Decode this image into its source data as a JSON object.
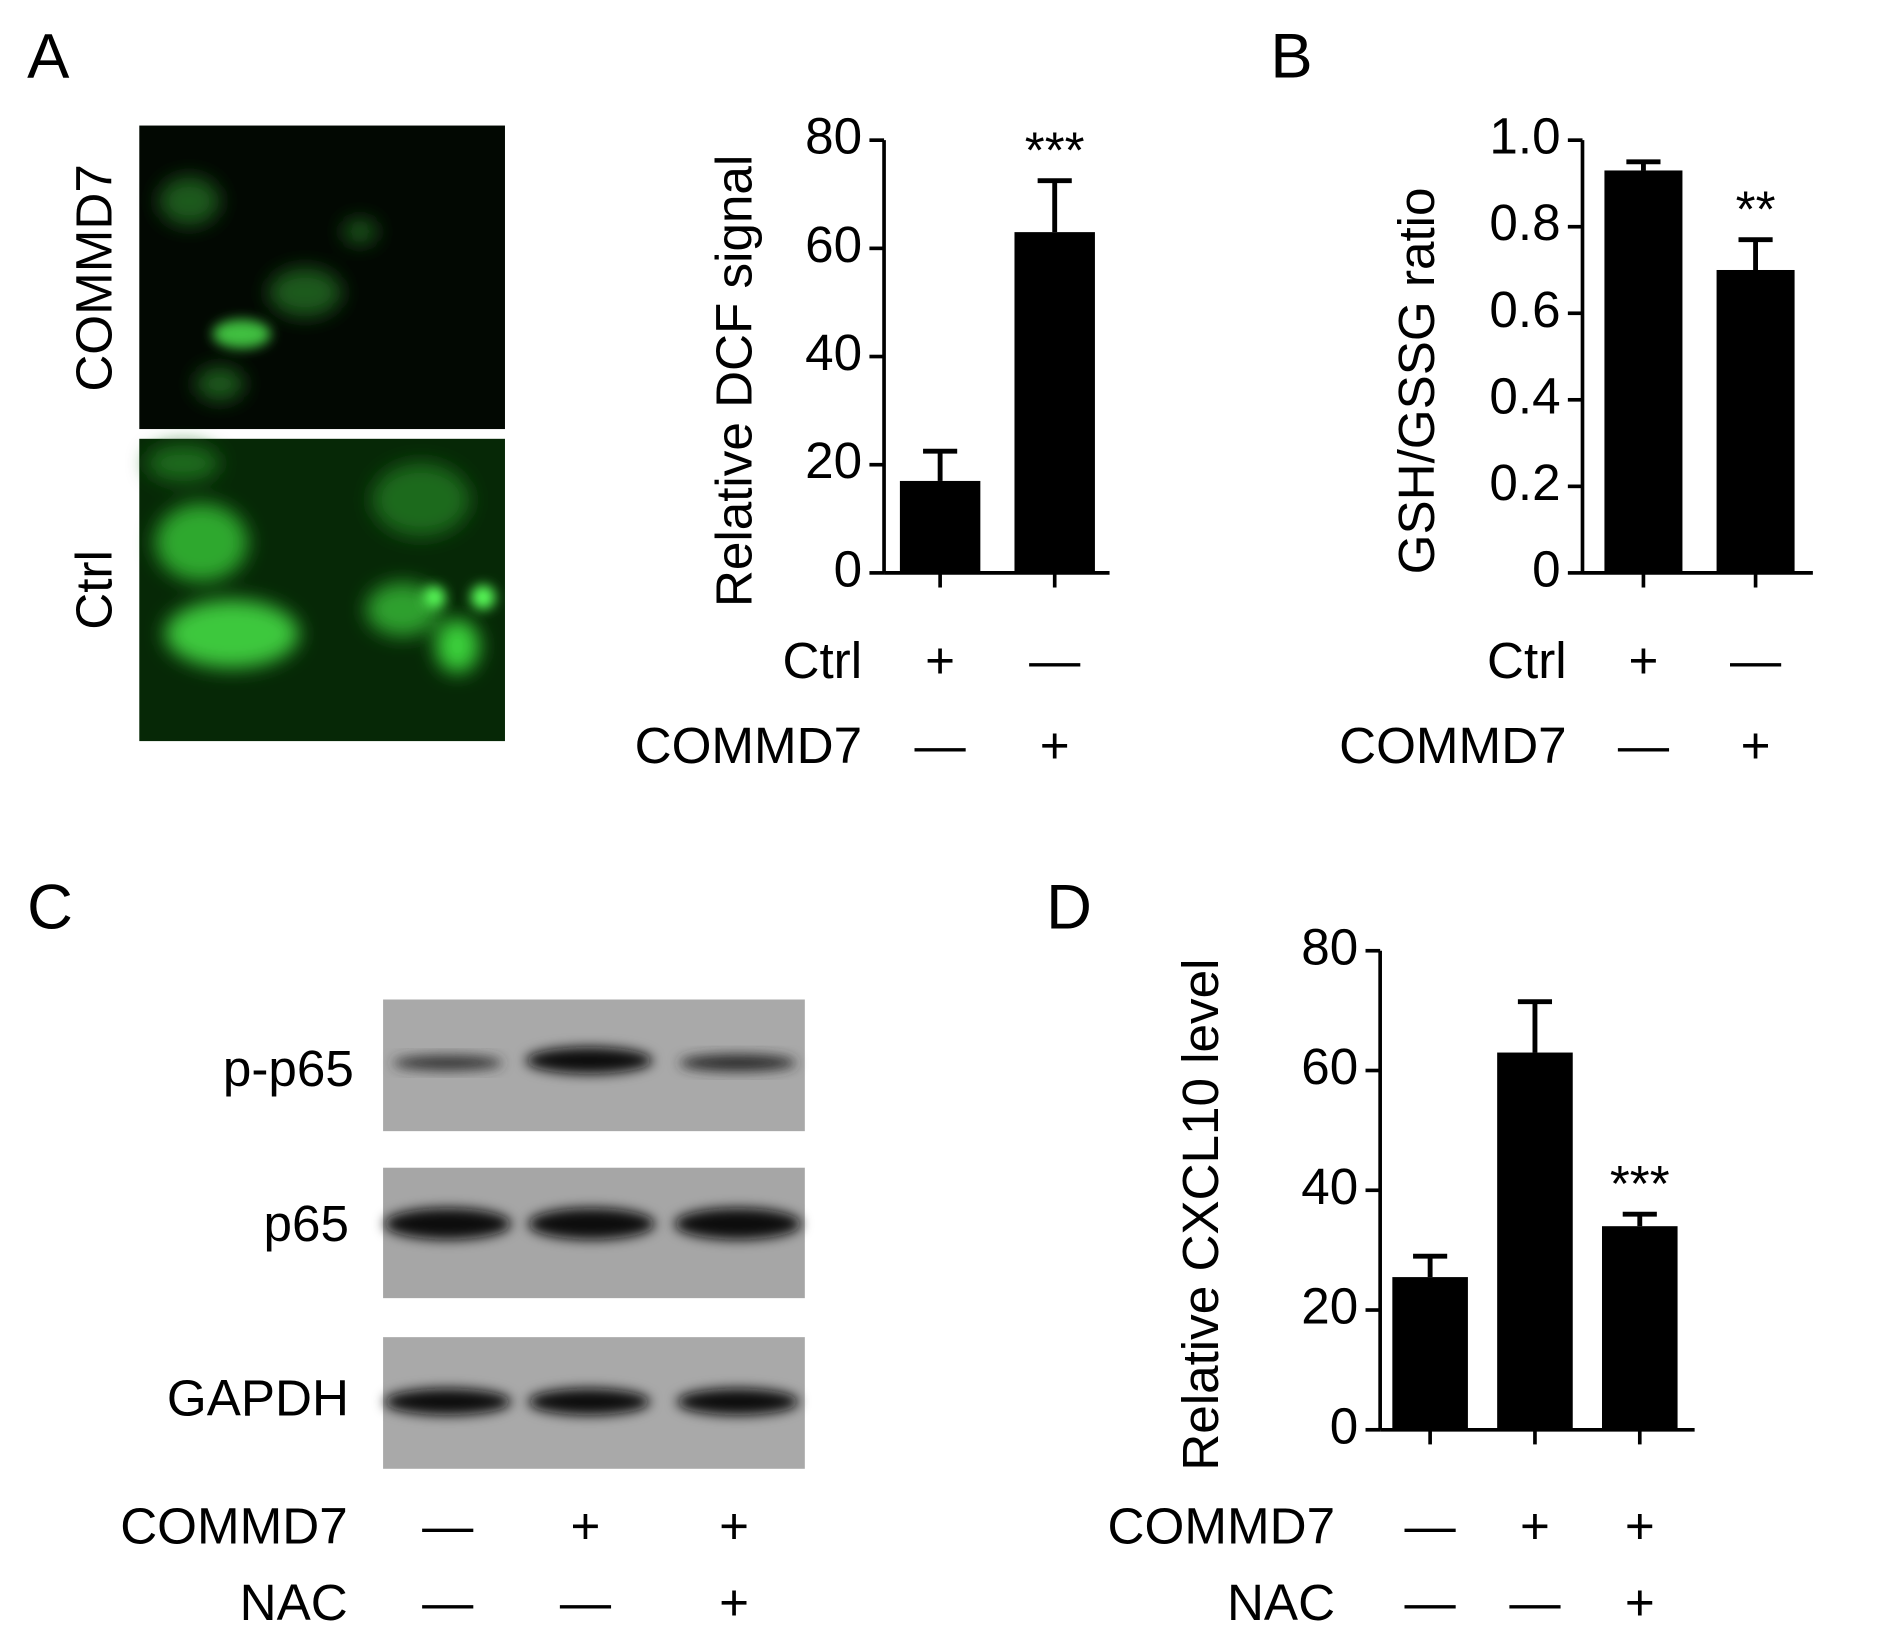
{
  "panel_labels": [
    "A",
    "B",
    "C",
    "D"
  ],
  "images": {
    "rows": [
      "COMMD7",
      "Ctrl"
    ]
  },
  "blot": {
    "rows": [
      "p-p65",
      "p65",
      "GAPDH"
    ],
    "conditions": [
      {
        "label": "COMMD7",
        "marks": [
          "—",
          "+",
          "+"
        ]
      },
      {
        "label": "NAC",
        "marks": [
          "—",
          "—",
          "+"
        ]
      }
    ]
  },
  "chart_data": [
    {
      "type": "bar",
      "ylabel": "Relative DCF signal",
      "values": [
        17,
        63
      ],
      "errors": [
        5.5,
        9.5
      ],
      "annotations": [
        null,
        "***"
      ],
      "ylim": [
        0,
        80
      ],
      "yticks": [
        0,
        20,
        40,
        60,
        80
      ],
      "color": "#000000",
      "conditions": [
        {
          "label": "Ctrl",
          "marks": [
            "+",
            "—"
          ]
        },
        {
          "label": "COMMD7",
          "marks": [
            "—",
            "+"
          ]
        }
      ]
    },
    {
      "type": "bar",
      "ylabel": "GSH/GSSG ratio",
      "values": [
        0.93,
        0.7
      ],
      "errors": [
        0.02,
        0.07
      ],
      "annotations": [
        null,
        "**"
      ],
      "ylim": [
        0,
        1
      ],
      "yticks": [
        0,
        0.2,
        0.4,
        0.6,
        0.8,
        {
          "value": 1,
          "label": "1.0"
        }
      ],
      "color": "#000000",
      "conditions": [
        {
          "label": "Ctrl",
          "marks": [
            "+",
            "—"
          ]
        },
        {
          "label": "COMMD7",
          "marks": [
            "—",
            "+"
          ]
        }
      ]
    },
    {
      "type": "bar",
      "ylabel": "Relative CXCL10 level",
      "values": [
        25.5,
        63,
        34
      ],
      "errors": [
        3.5,
        8.5,
        2
      ],
      "annotations": [
        null,
        null,
        "***"
      ],
      "ylim": [
        0,
        80
      ],
      "yticks": [
        0,
        20,
        40,
        60,
        80
      ],
      "color": "#000000",
      "conditions": [
        {
          "label": "COMMD7",
          "marks": [
            "—",
            "+",
            "+"
          ]
        },
        {
          "label": "NAC",
          "marks": [
            "—",
            "—",
            "+"
          ]
        }
      ]
    }
  ]
}
